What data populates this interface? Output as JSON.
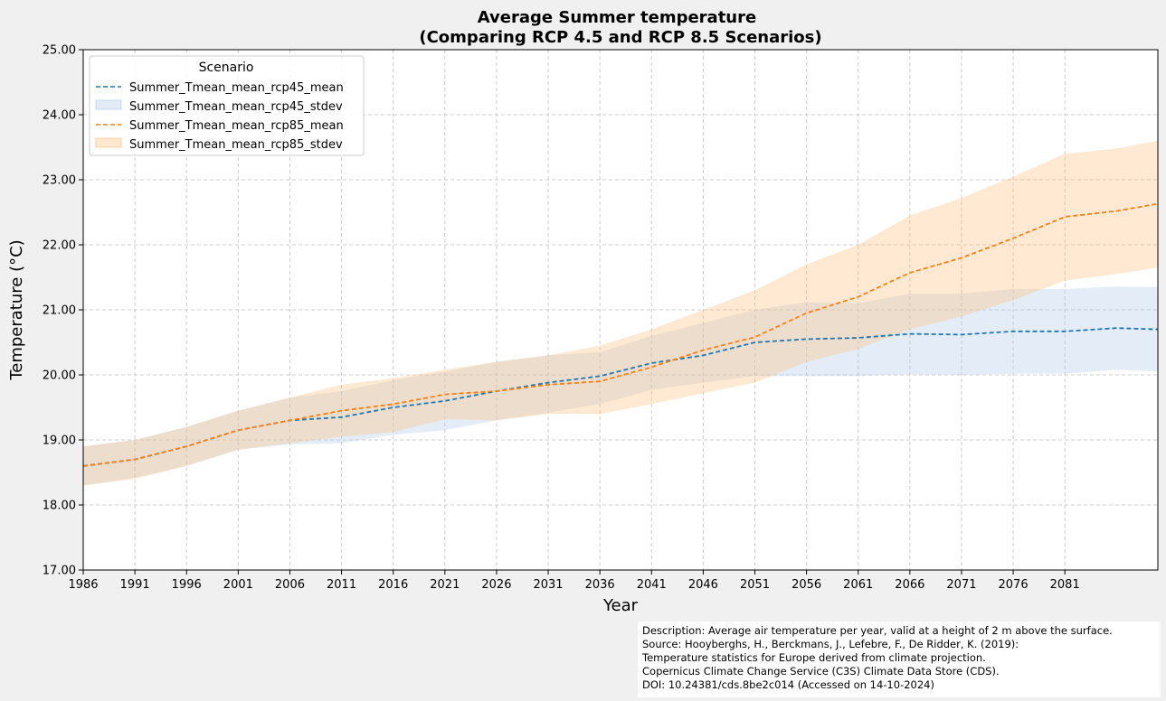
{
  "chart_data": {
    "type": "line",
    "title": "Average Summer temperature",
    "subtitle": "(Comparing RCP 4.5 and RCP 8.5 Scenarios)",
    "xlabel": "Year",
    "ylabel": "Temperature (°C)",
    "xlim": [
      1986,
      2090
    ],
    "ylim": [
      17.0,
      25.0
    ],
    "grid": true,
    "x_ticks": [
      "1986",
      "1991",
      "1996",
      "2001",
      "2006",
      "2011",
      "2016",
      "2021",
      "2026",
      "2031",
      "2036",
      "2041",
      "2046",
      "2051",
      "2056",
      "2061",
      "2066",
      "2071",
      "2076",
      "2081"
    ],
    "y_ticks": [
      "17.00",
      "18.00",
      "19.00",
      "20.00",
      "21.00",
      "22.00",
      "23.00",
      "24.00",
      "25.00"
    ],
    "legend": {
      "title": "Scenario",
      "placement": "top-left",
      "entries": [
        "Summer_Tmean_mean_rcp45_mean",
        "Summer_Tmean_mean_rcp45_stdev",
        "Summer_Tmean_mean_rcp85_mean",
        "Summer_Tmean_mean_rcp85_stdev"
      ]
    },
    "series": [
      {
        "name": "Summer_Tmean_mean_rcp45_mean",
        "color": "#1f77b4",
        "band_color": "#aec7e8",
        "x": [
          1986,
          1991,
          1996,
          2001,
          2006,
          2011,
          2016,
          2021,
          2026,
          2031,
          2036,
          2041,
          2046,
          2051,
          2056,
          2061,
          2066,
          2071,
          2076,
          2081,
          2086,
          2090
        ],
        "y": [
          18.6,
          18.7,
          18.9,
          19.15,
          19.3,
          19.35,
          19.5,
          19.6,
          19.75,
          19.88,
          19.98,
          20.18,
          20.3,
          20.5,
          20.55,
          20.57,
          20.63,
          20.62,
          20.67,
          20.67,
          20.72,
          20.7
        ],
        "stdev_upper": [
          18.9,
          19.0,
          19.2,
          19.45,
          19.65,
          19.75,
          19.92,
          20.05,
          20.2,
          20.3,
          20.35,
          20.6,
          20.8,
          21.0,
          21.12,
          21.1,
          21.25,
          21.25,
          21.32,
          21.32,
          21.36,
          21.35
        ],
        "stdev_lower": [
          18.3,
          18.42,
          18.6,
          18.85,
          18.93,
          18.95,
          19.08,
          19.15,
          19.3,
          19.42,
          19.55,
          19.77,
          19.88,
          19.98,
          19.98,
          19.98,
          20.01,
          20.0,
          20.02,
          20.02,
          20.08,
          20.05
        ]
      },
      {
        "name": "Summer_Tmean_mean_rcp85_mean",
        "color": "#ff7f0e",
        "band_color": "#ffbb78",
        "x": [
          1986,
          1991,
          1996,
          2001,
          2006,
          2011,
          2016,
          2021,
          2026,
          2031,
          2036,
          2041,
          2046,
          2051,
          2056,
          2061,
          2066,
          2071,
          2076,
          2081,
          2086,
          2090
        ],
        "y": [
          18.6,
          18.7,
          18.9,
          19.15,
          19.3,
          19.45,
          19.55,
          19.7,
          19.75,
          19.85,
          19.9,
          20.12,
          20.38,
          20.58,
          20.95,
          21.2,
          21.57,
          21.8,
          22.1,
          22.43,
          22.52,
          22.63
        ],
        "stdev_upper": [
          18.9,
          19.0,
          19.2,
          19.45,
          19.65,
          19.85,
          19.95,
          20.08,
          20.2,
          20.3,
          20.45,
          20.7,
          21.0,
          21.3,
          21.7,
          22.0,
          22.45,
          22.72,
          23.05,
          23.4,
          23.48,
          23.6
        ],
        "stdev_lower": [
          18.3,
          18.4,
          18.6,
          18.85,
          18.95,
          19.05,
          19.12,
          19.32,
          19.3,
          19.4,
          19.4,
          19.55,
          19.72,
          19.88,
          20.2,
          20.4,
          20.7,
          20.9,
          21.15,
          21.45,
          21.55,
          21.65
        ]
      }
    ]
  },
  "footnote": {
    "line1": "Description: Average air temperature per year, valid at a height of 2 m above the surface.",
    "line2": "Source: Hooyberghs, H., Berckmans, J., Lefebre, F., De Ridder, K. (2019):",
    "line3": "Temperature statistics for Europe derived from climate projection.",
    "line4": "Copernicus Climate Change Service (C3S) Climate Data Store (CDS).",
    "line5": "DOI: 10.24381/cds.8be2c014 (Accessed on 14-10-2024)"
  }
}
